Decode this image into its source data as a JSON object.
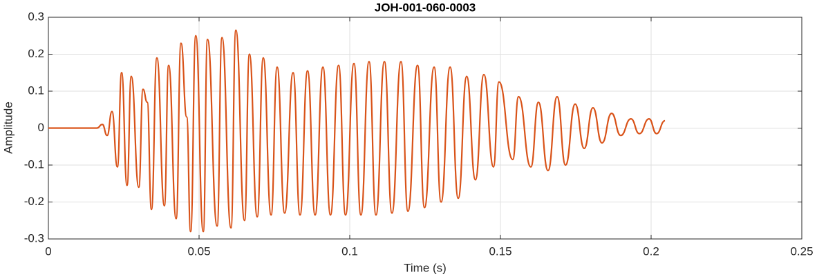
{
  "chart_data": {
    "type": "line",
    "title": "JOH-001-060-0003",
    "x_label": "Time (s)",
    "y_label": "Amplitude",
    "xlim": [
      0,
      0.25
    ],
    "xticks": [
      0,
      0.05,
      0.1,
      0.15,
      0.2,
      0.25
    ],
    "ylim": [
      -0.3,
      0.3
    ],
    "yticks": [
      -0.3,
      -0.2,
      -0.1,
      0,
      0.1,
      0.2,
      0.3
    ],
    "grid": true,
    "x": [
      0,
      0.0161,
      0.0179,
      0.0195,
      0.0211,
      0.0229,
      0.0243,
      0.0261,
      0.0275,
      0.03,
      0.0314,
      0.0328,
      0.0342,
      0.036,
      0.0385,
      0.0399,
      0.0424,
      0.044,
      0.0459,
      0.0472,
      0.0489,
      0.0514,
      0.0528,
      0.056,
      0.0576,
      0.0606,
      0.0622,
      0.0651,
      0.0667,
      0.0693,
      0.0713,
      0.0739,
      0.0759,
      0.0784,
      0.0812,
      0.0835,
      0.086,
      0.0885,
      0.0911,
      0.0936,
      0.0963,
      0.0986,
      0.1014,
      0.1037,
      0.1064,
      0.1087,
      0.1115,
      0.114,
      0.117,
      0.1193,
      0.1225,
      0.1248,
      0.128,
      0.1303,
      0.1333,
      0.136,
      0.1388,
      0.1417,
      0.1445,
      0.1477,
      0.1495,
      0.1541,
      0.156,
      0.1601,
      0.1626,
      0.1658,
      0.1688,
      0.1716,
      0.1748,
      0.1778,
      0.1807,
      0.1837,
      0.1869,
      0.1899,
      0.1933,
      0.1961,
      0.1993,
      0.2018,
      0.2046
    ],
    "series": [
      {
        "name": "Amplitude",
        "color": "#d95319",
        "values": [
          0,
          0,
          0.01,
          -0.02,
          0.045,
          -0.105,
          0.15,
          -0.155,
          0.14,
          -0.16,
          0.105,
          0.07,
          -0.22,
          0.19,
          -0.21,
          0.17,
          -0.245,
          0.23,
          0.03,
          -0.28,
          0.25,
          -0.28,
          0.24,
          -0.265,
          0.245,
          -0.27,
          0.265,
          -0.25,
          0.2,
          -0.24,
          0.19,
          -0.235,
          0.165,
          -0.23,
          0.15,
          -0.235,
          0.155,
          -0.235,
          0.165,
          -0.235,
          0.17,
          -0.235,
          0.175,
          -0.235,
          0.18,
          -0.235,
          0.18,
          -0.23,
          0.18,
          -0.225,
          0.17,
          -0.215,
          0.165,
          -0.2,
          0.165,
          -0.19,
          0.14,
          -0.14,
          0.145,
          -0.105,
          0.125,
          -0.085,
          0.085,
          -0.105,
          0.07,
          -0.115,
          0.085,
          -0.1,
          0.065,
          -0.055,
          0.055,
          -0.04,
          0.04,
          -0.02,
          0.025,
          -0.015,
          0.025,
          -0.015,
          0.02
        ]
      }
    ]
  }
}
